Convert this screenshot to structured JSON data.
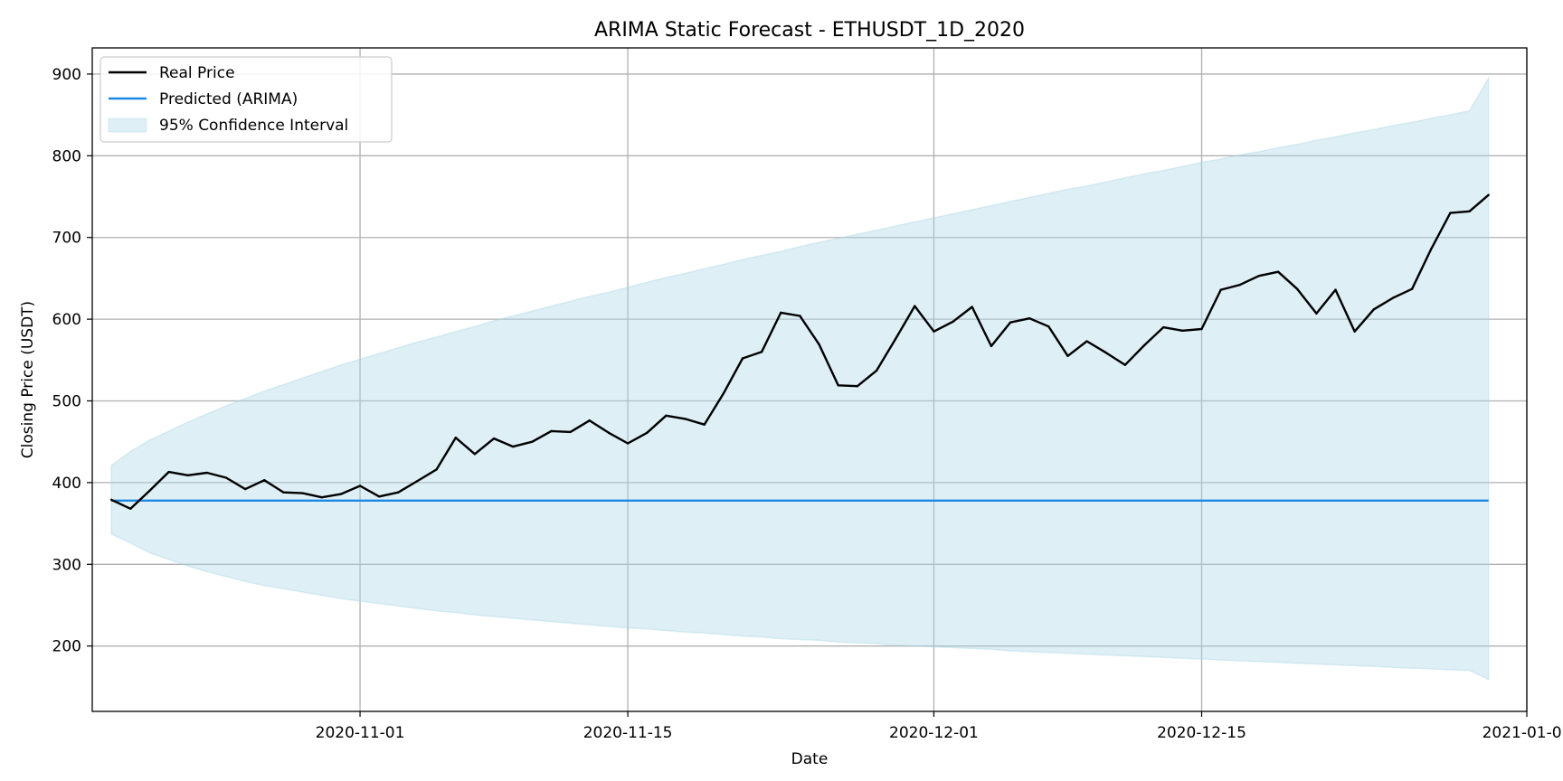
{
  "chart_data": {
    "type": "line",
    "title": "ARIMA Static Forecast - ETHUSDT_1D_2020",
    "xlabel": "Date",
    "ylabel": "Closing Price (USDT)",
    "xlim": [
      "2020-10-18",
      "2021-01-01"
    ],
    "ylim": [
      120,
      932
    ],
    "grid": true,
    "legend_position": "top-left",
    "x_ticks": [
      "2020-11-01",
      "2020-11-15",
      "2020-12-01",
      "2020-12-15",
      "2021-01-01"
    ],
    "y_ticks": [
      200,
      300,
      400,
      500,
      600,
      700,
      800,
      900
    ],
    "x": [
      "2020-10-19",
      "2020-10-20",
      "2020-10-21",
      "2020-10-22",
      "2020-10-23",
      "2020-10-24",
      "2020-10-25",
      "2020-10-26",
      "2020-10-27",
      "2020-10-28",
      "2020-10-29",
      "2020-10-30",
      "2020-10-31",
      "2020-11-01",
      "2020-11-02",
      "2020-11-03",
      "2020-11-04",
      "2020-11-05",
      "2020-11-06",
      "2020-11-07",
      "2020-11-08",
      "2020-11-09",
      "2020-11-10",
      "2020-11-11",
      "2020-11-12",
      "2020-11-13",
      "2020-11-14",
      "2020-11-15",
      "2020-11-16",
      "2020-11-17",
      "2020-11-18",
      "2020-11-19",
      "2020-11-20",
      "2020-11-21",
      "2020-11-22",
      "2020-11-23",
      "2020-11-24",
      "2020-11-25",
      "2020-11-26",
      "2020-11-27",
      "2020-11-28",
      "2020-11-29",
      "2020-11-30",
      "2020-12-01",
      "2020-12-02",
      "2020-12-03",
      "2020-12-04",
      "2020-12-05",
      "2020-12-06",
      "2020-12-07",
      "2020-12-08",
      "2020-12-09",
      "2020-12-10",
      "2020-12-11",
      "2020-12-12",
      "2020-12-13",
      "2020-12-14",
      "2020-12-15",
      "2020-12-16",
      "2020-12-17",
      "2020-12-18",
      "2020-12-19",
      "2020-12-20",
      "2020-12-21",
      "2020-12-22",
      "2020-12-23",
      "2020-12-24",
      "2020-12-25",
      "2020-12-26",
      "2020-12-27",
      "2020-12-28",
      "2020-12-29",
      "2020-12-30"
    ],
    "series": [
      {
        "name": "Real Price",
        "color": "#000000",
        "values": [
          379,
          368,
          390,
          413,
          409,
          412,
          406,
          392,
          403,
          388,
          387,
          382,
          386,
          396,
          383,
          388,
          402,
          416,
          455,
          435,
          454,
          444,
          450,
          463,
          462,
          476,
          461,
          448,
          461,
          482,
          478,
          471,
          509,
          552,
          560,
          608,
          604,
          569,
          519,
          518,
          537,
          576,
          616,
          585,
          597,
          615,
          567,
          596,
          601,
          591,
          555,
          573,
          559,
          544,
          568,
          590,
          586,
          588,
          636,
          642,
          653,
          658,
          637,
          607,
          636,
          585,
          612,
          626,
          637,
          686,
          730,
          732,
          752
        ]
      },
      {
        "name": "Predicted (ARIMA)",
        "color": "#1e88e5",
        "values": [
          378,
          378,
          378,
          378,
          378,
          378,
          378,
          378,
          378,
          378,
          378,
          378,
          378,
          378,
          378,
          378,
          378,
          378,
          378,
          378,
          378,
          378,
          378,
          378,
          378,
          378,
          378,
          378,
          378,
          378,
          378,
          378,
          378,
          378,
          378,
          378,
          378,
          378,
          378,
          378,
          378,
          378,
          378,
          378,
          378,
          378,
          378,
          378,
          378,
          378,
          378,
          378,
          378,
          378,
          378,
          378,
          378,
          378,
          378,
          378,
          378,
          378,
          378,
          378,
          378,
          378,
          378,
          378,
          378,
          378,
          378,
          378,
          378
        ]
      }
    ],
    "confidence_interval": {
      "name": "95% Confidence Interval",
      "color": "#add8e6",
      "lower": [
        337,
        326,
        314,
        306,
        298,
        291,
        285,
        279,
        274,
        270,
        266,
        262,
        258,
        255,
        252,
        249,
        246,
        243,
        241,
        238,
        236,
        234,
        232,
        230,
        228,
        226,
        224,
        222,
        221,
        219,
        217,
        216,
        214,
        212,
        211,
        209,
        208,
        207,
        205,
        204,
        203,
        201,
        200,
        199,
        198,
        197,
        196,
        194,
        193,
        192,
        191,
        190,
        189,
        188,
        187,
        186,
        185,
        184,
        183,
        182,
        181,
        180,
        179,
        178,
        177,
        176,
        175,
        174,
        173,
        172,
        171,
        170,
        159
      ],
      "upper": [
        421,
        438,
        452,
        463,
        474,
        484,
        494,
        503,
        512,
        520,
        528,
        536,
        544,
        551,
        558,
        565,
        572,
        578,
        585,
        591,
        598,
        604,
        610,
        616,
        622,
        628,
        633,
        639,
        645,
        651,
        656,
        662,
        667,
        673,
        678,
        683,
        689,
        694,
        699,
        704,
        709,
        714,
        719,
        724,
        729,
        734,
        739,
        744,
        749,
        754,
        759,
        763,
        768,
        773,
        778,
        782,
        787,
        792,
        796,
        801,
        805,
        810,
        814,
        819,
        823,
        828,
        832,
        837,
        841,
        846,
        850,
        855,
        895
      ]
    }
  }
}
